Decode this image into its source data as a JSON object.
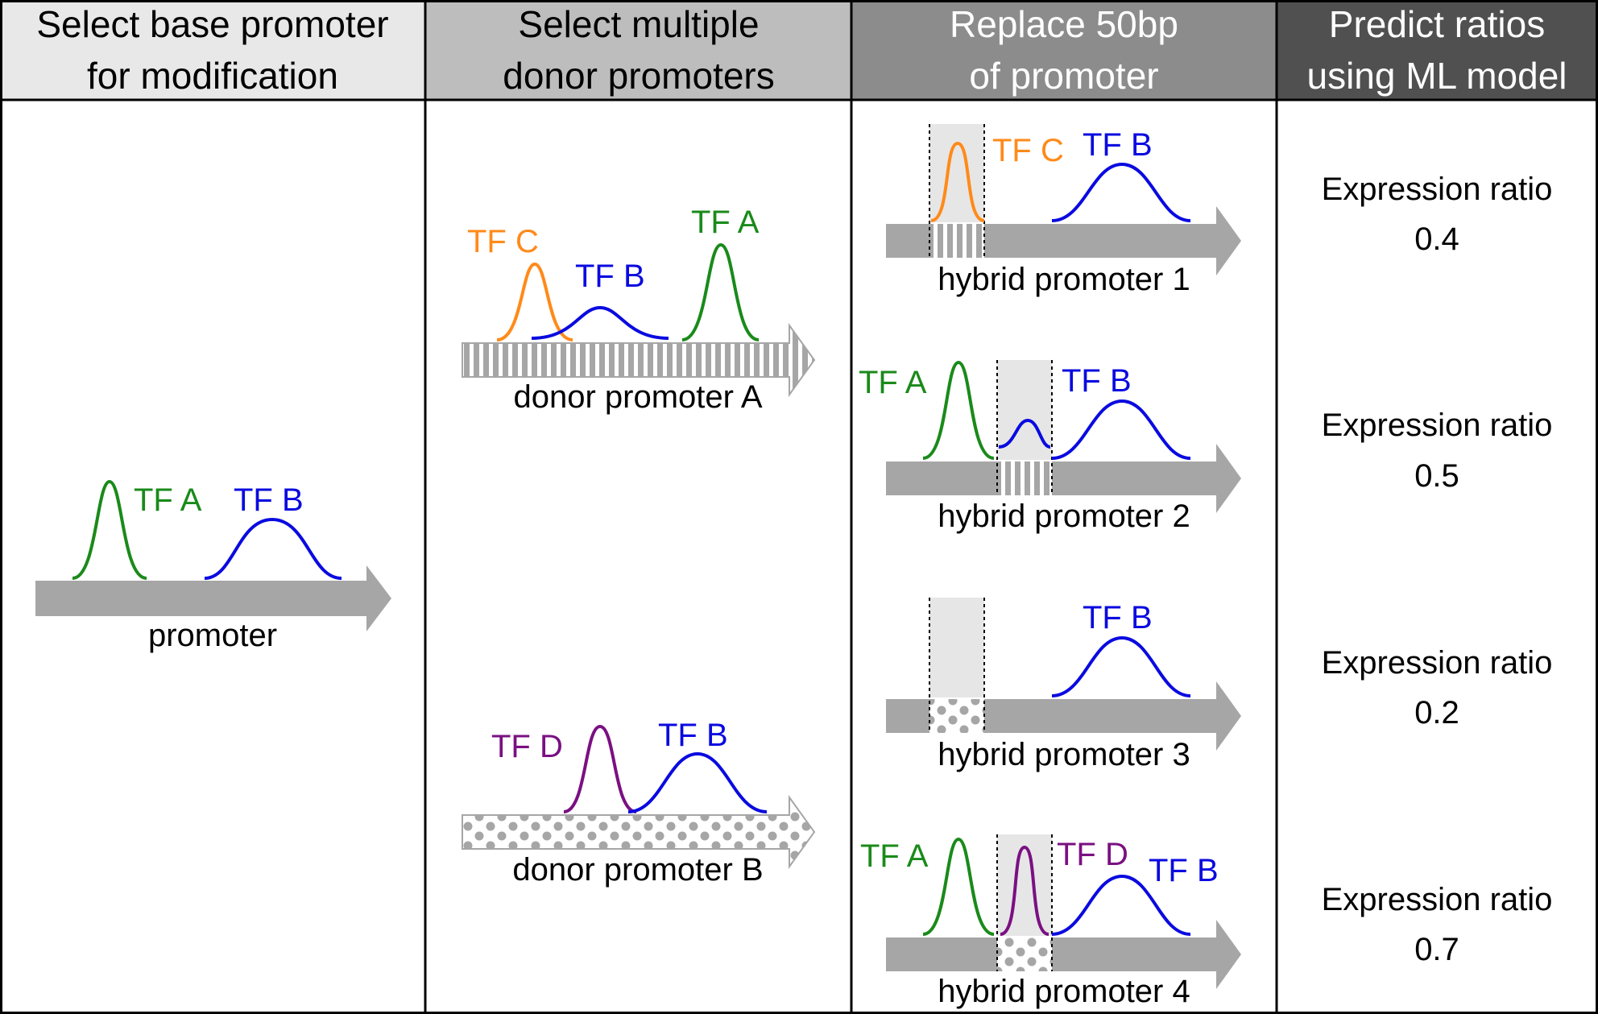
{
  "headers": [
    {
      "line1": "Select base promoter",
      "line2": "for modification"
    },
    {
      "line1": "Select multiple",
      "line2": "donor promoters"
    },
    {
      "line1": "Replace 50bp",
      "line2": "of promoter"
    },
    {
      "line1": "Predict ratios",
      "line2": "using ML model"
    }
  ],
  "base": {
    "label": "promoter",
    "tf_a": "TF A",
    "tf_b": "TF B"
  },
  "donors": [
    {
      "label": "donor promoter A",
      "tfs": [
        "TF C",
        "TF B",
        "TF A"
      ]
    },
    {
      "label": "donor promoter B",
      "tfs": [
        "TF D",
        "TF B"
      ]
    }
  ],
  "hybrids": [
    {
      "label": "hybrid promoter 1",
      "tfs": [
        "TF C",
        "TF B"
      ]
    },
    {
      "label": "hybrid promoter 2",
      "tfs": [
        "TF A",
        "TF B"
      ]
    },
    {
      "label": "hybrid promoter 3",
      "tfs": [
        "TF B"
      ]
    },
    {
      "label": "hybrid promoter 4",
      "tfs": [
        "TF A",
        "TF D",
        "TF B"
      ]
    }
  ],
  "predictions": [
    {
      "label": "Expression ratio",
      "value": "0.4"
    },
    {
      "label": "Expression ratio",
      "value": "0.5"
    },
    {
      "label": "Expression ratio",
      "value": "0.2"
    },
    {
      "label": "Expression ratio",
      "value": "0.7"
    }
  ],
  "colors": {
    "tf_a": "#1a8a1a",
    "tf_b": "#0a0ae0",
    "tf_c": "#ff8a1a",
    "tf_d": "#7a1082",
    "arrow": "#a6a6a6",
    "header_1": "#e8e8e8",
    "header_2": "#bdbdbd",
    "header_3": "#8c8c8c",
    "header_4": "#505050"
  }
}
